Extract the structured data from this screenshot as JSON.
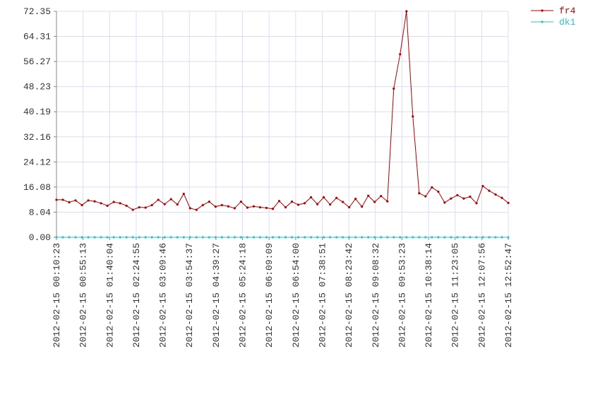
{
  "chart_data": {
    "type": "line",
    "xticks": [
      "2012-02-15 00:10:23",
      "2012-02-15 00:55:13",
      "2012-02-15 01:40:04",
      "2012-02-15 02:24:55",
      "2012-02-15 03:09:46",
      "2012-02-15 03:54:37",
      "2012-02-15 04:39:27",
      "2012-02-15 05:24:18",
      "2012-02-15 06:09:09",
      "2012-02-15 06:54:00",
      "2012-02-15 07:38:51",
      "2012-02-15 08:23:42",
      "2012-02-15 09:08:32",
      "2012-02-15 09:53:23",
      "2012-02-15 10:38:14",
      "2012-02-15 11:23:05",
      "2012-02-15 12:07:56",
      "2012-02-15 12:52:47"
    ],
    "series": [
      {
        "name": "fr4",
        "color": "#b00000",
        "values": [
          12,
          12,
          11.2,
          11.8,
          10.3,
          11.8,
          11.5,
          10.9,
          10.1,
          11.3,
          10.9,
          10.1,
          8.8,
          9.6,
          9.5,
          10.3,
          12,
          10.6,
          12.2,
          10.5,
          13.9,
          9.3,
          8.8,
          10.3,
          11.4,
          9.8,
          10.3,
          9.9,
          9.3,
          11.4,
          9.5,
          9.9,
          9.6,
          9.4,
          9.1,
          11.6,
          9.6,
          11.4,
          10.4,
          10.9,
          12.8,
          10.6,
          12.8,
          10.5,
          12.6,
          11.3,
          9.6,
          12.3,
          9.8,
          13.3,
          11.3,
          13.2,
          11.5,
          47.6,
          58.6,
          72.35,
          38.7,
          14.1,
          13.1,
          16,
          14.6,
          11.1,
          12.4,
          13.5,
          12.4,
          13,
          10.9,
          16.4,
          14.9,
          13.7,
          12.6,
          11
        ]
      },
      {
        "name": "dk1",
        "color": "#33c0c0",
        "values": [
          0,
          0,
          0,
          0,
          0,
          0,
          0,
          0,
          0,
          0,
          0,
          0,
          0,
          0,
          0,
          0,
          0,
          0,
          0,
          0,
          0,
          0,
          0,
          0,
          0,
          0,
          0,
          0,
          0,
          0,
          0,
          0,
          0,
          0,
          0,
          0,
          0,
          0,
          0,
          0,
          0,
          0,
          0,
          0,
          0,
          0,
          0,
          0,
          0,
          0,
          0,
          0,
          0,
          0,
          0,
          0,
          0,
          0,
          0,
          0,
          0,
          0,
          0,
          0,
          0,
          0,
          0,
          0,
          0,
          0,
          0,
          0
        ]
      }
    ],
    "ylim": [
      0,
      72.35
    ],
    "yticks": [
      {
        "value": 0,
        "label": "0.00"
      },
      8.04,
      16.08,
      24.12,
      32.16,
      40.19,
      48.23,
      56.27,
      64.31,
      72.35
    ],
    "grid": true
  }
}
